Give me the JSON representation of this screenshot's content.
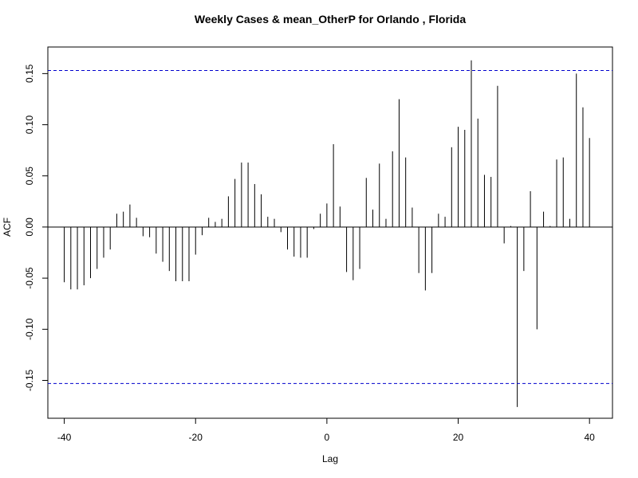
{
  "chart_data": {
    "type": "bar",
    "title": "Weekly Cases & mean_OtherP for Orlando , Florida",
    "xlabel": "Lag",
    "ylabel": "ACF",
    "xlim": [
      -42.5,
      43.5
    ],
    "ylim": [
      -0.187,
      0.176
    ],
    "x_ticks": [
      -40,
      -20,
      0,
      20,
      40
    ],
    "y_ticks": [
      -0.15,
      -0.1,
      -0.05,
      0.0,
      0.05,
      0.1,
      0.15
    ],
    "y_tick_labels": [
      "-0.15",
      "-0.10",
      "-0.05",
      "0.00",
      "0.05",
      "0.10",
      "0.15"
    ],
    "confidence_limit": 0.153,
    "confidence_color": "#0000cd",
    "bar_color": "#000000",
    "lags": [
      -40,
      -39,
      -38,
      -37,
      -36,
      -35,
      -34,
      -33,
      -32,
      -31,
      -30,
      -29,
      -28,
      -27,
      -26,
      -25,
      -24,
      -23,
      -22,
      -21,
      -20,
      -19,
      -18,
      -17,
      -16,
      -15,
      -14,
      -13,
      -12,
      -11,
      -10,
      -9,
      -8,
      -7,
      -6,
      -5,
      -4,
      -3,
      -2,
      -1,
      0,
      1,
      2,
      3,
      4,
      5,
      6,
      7,
      8,
      9,
      10,
      11,
      12,
      13,
      14,
      15,
      16,
      17,
      18,
      19,
      20,
      21,
      22,
      23,
      24,
      25,
      26,
      27,
      28,
      29,
      30,
      31,
      32,
      33,
      34,
      35,
      36,
      37,
      38,
      39,
      40
    ],
    "values": [
      -0.054,
      -0.061,
      -0.061,
      -0.057,
      -0.05,
      -0.041,
      -0.03,
      -0.022,
      0.013,
      0.015,
      0.022,
      0.009,
      -0.009,
      -0.01,
      -0.026,
      -0.034,
      -0.043,
      -0.053,
      -0.053,
      -0.053,
      -0.027,
      -0.008,
      0.009,
      0.005,
      0.008,
      0.03,
      0.047,
      0.063,
      0.063,
      0.042,
      0.032,
      0.01,
      0.008,
      -0.005,
      -0.022,
      -0.029,
      -0.03,
      -0.03,
      -0.002,
      0.013,
      0.023,
      0.081,
      0.02,
      -0.044,
      -0.052,
      -0.041,
      0.048,
      0.017,
      0.062,
      0.008,
      0.074,
      0.125,
      0.068,
      0.019,
      -0.045,
      -0.062,
      -0.045,
      0.013,
      0.01,
      0.078,
      0.098,
      0.095,
      0.163,
      0.106,
      0.051,
      0.049,
      0.138,
      -0.016,
      0.001,
      -0.176,
      -0.043,
      0.035,
      -0.1,
      0.015,
      0.001,
      0.066,
      0.068,
      0.008,
      0.15,
      0.117,
      0.087
    ]
  }
}
